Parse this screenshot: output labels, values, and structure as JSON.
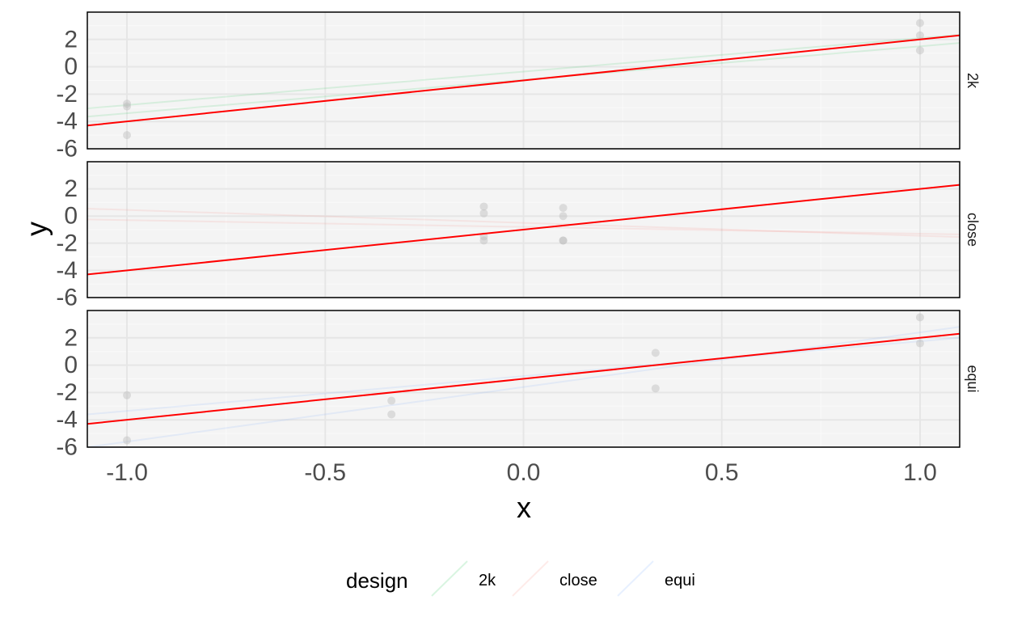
{
  "chart_data": {
    "type": "scatter",
    "xlabel": "x",
    "ylabel": "y",
    "xlim": [
      -1.1,
      1.1
    ],
    "ylim": [
      -6,
      4
    ],
    "x_ticks": [
      -1.0,
      -0.5,
      0.0,
      0.5,
      1.0
    ],
    "x_tick_labels": [
      "-1.0",
      "-0.5",
      "0.0",
      "0.5",
      "1.0"
    ],
    "y_ticks": [
      -6,
      -4,
      -2,
      0,
      2
    ],
    "y_tick_labels": [
      "-6",
      "-4",
      "-2",
      "0",
      "2"
    ],
    "grid": true,
    "true_line": {
      "intercept": -1,
      "slope": 3,
      "color": "#ff0000"
    },
    "legend": {
      "title": "design",
      "position": "bottom",
      "entries": [
        {
          "label": "2k",
          "color": "#00ba38"
        },
        {
          "label": "close",
          "color": "#f8766d"
        },
        {
          "label": "equi",
          "color": "#619cff"
        }
      ]
    },
    "panels": [
      {
        "facet": "2k",
        "points": [
          {
            "x": -1.0,
            "y": -2.7
          },
          {
            "x": -1.0,
            "y": -2.9
          },
          {
            "x": -1.0,
            "y": -5.0
          },
          {
            "x": 1.0,
            "y": 3.2
          },
          {
            "x": 1.0,
            "y": 2.3
          },
          {
            "x": 1.0,
            "y": 1.2
          }
        ],
        "fits": [
          {
            "intercept": -0.35,
            "slope": 2.45
          },
          {
            "intercept": -0.95,
            "slope": 2.45
          }
        ]
      },
      {
        "facet": "close",
        "points": [
          {
            "x": -0.1,
            "y": 0.7
          },
          {
            "x": -0.1,
            "y": 0.2
          },
          {
            "x": -0.1,
            "y": -1.5
          },
          {
            "x": -0.1,
            "y": -1.8
          },
          {
            "x": 0.1,
            "y": 0.6
          },
          {
            "x": 0.1,
            "y": 0.0
          },
          {
            "x": 0.1,
            "y": -1.8
          },
          {
            "x": 0.1,
            "y": -1.8
          }
        ],
        "fits": [
          {
            "intercept": -0.5,
            "slope": -0.95
          },
          {
            "intercept": -0.8,
            "slope": -0.5
          }
        ]
      },
      {
        "facet": "equi",
        "points": [
          {
            "x": -1.0,
            "y": -2.2
          },
          {
            "x": -1.0,
            "y": -5.5
          },
          {
            "x": -0.333,
            "y": -2.6
          },
          {
            "x": -0.333,
            "y": -3.6
          },
          {
            "x": 0.333,
            "y": 0.9
          },
          {
            "x": 0.333,
            "y": -1.7
          },
          {
            "x": 1.0,
            "y": 3.5
          },
          {
            "x": 1.0,
            "y": 1.6
          }
        ],
        "fits": [
          {
            "intercept": -0.8,
            "slope": 2.55
          },
          {
            "intercept": -1.6,
            "slope": 4.0
          }
        ]
      }
    ]
  }
}
